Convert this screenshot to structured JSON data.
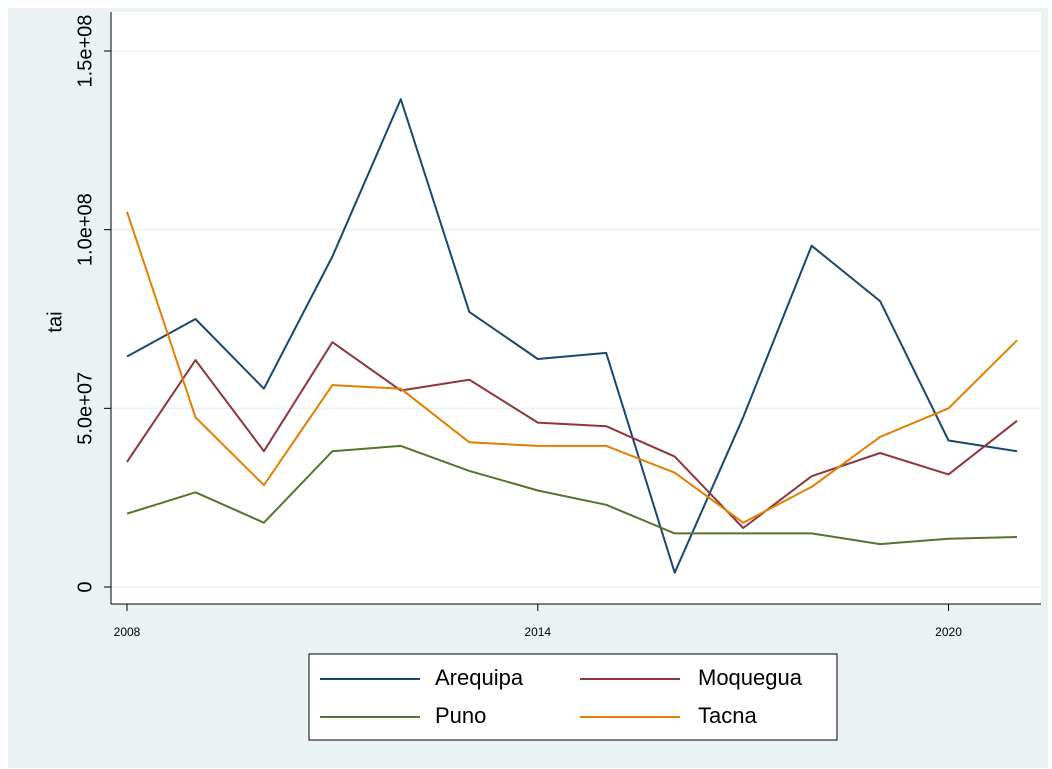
{
  "chart_data": {
    "type": "line",
    "title": "",
    "xlabel": "",
    "ylabel": "tai",
    "xlim": [
      2008,
      2021
    ],
    "ylim": [
      0,
      150000000
    ],
    "x_ticks": [
      2008,
      2014,
      2020
    ],
    "x_tick_labels": [
      "2008",
      "2014",
      "2020"
    ],
    "y_ticks": [
      0,
      50000000,
      100000000,
      150000000
    ],
    "y_tick_labels": [
      "0",
      "5.0e+07",
      "1.0e+08",
      "1.5e+08"
    ],
    "grid": true,
    "legend": "bottom",
    "x": [
      2008,
      2009,
      2010,
      2011,
      2012,
      2013,
      2014,
      2015,
      2016,
      2017,
      2018,
      2019,
      2020,
      2021
    ],
    "series": [
      {
        "name": "Arequipa",
        "color": "#1a476f",
        "values": [
          64500000,
          75000000,
          55500000,
          92500000,
          136500000,
          77000000,
          63800000,
          65500000,
          4000000,
          47500000,
          95500000,
          80000000,
          41000000,
          38000000
        ]
      },
      {
        "name": "Moquegua",
        "color": "#90353b",
        "values": [
          35000000,
          63500000,
          38000000,
          68500000,
          55000000,
          58000000,
          46000000,
          45000000,
          36500000,
          16500000,
          31000000,
          37500000,
          31500000,
          46500000
        ]
      },
      {
        "name": "Puno",
        "color": "#55752f",
        "values": [
          20500000,
          26500000,
          18000000,
          38000000,
          39500000,
          32500000,
          27000000,
          23000000,
          15000000,
          15000000,
          15000000,
          12000000,
          13500000,
          14000000
        ]
      },
      {
        "name": "Tacna",
        "color": "#e37e00",
        "values": [
          105000000,
          47500000,
          28500000,
          56500000,
          55500000,
          40500000,
          39500000,
          39500000,
          32000000,
          18000000,
          28000000,
          42000000,
          50000000,
          69000000
        ]
      }
    ]
  }
}
